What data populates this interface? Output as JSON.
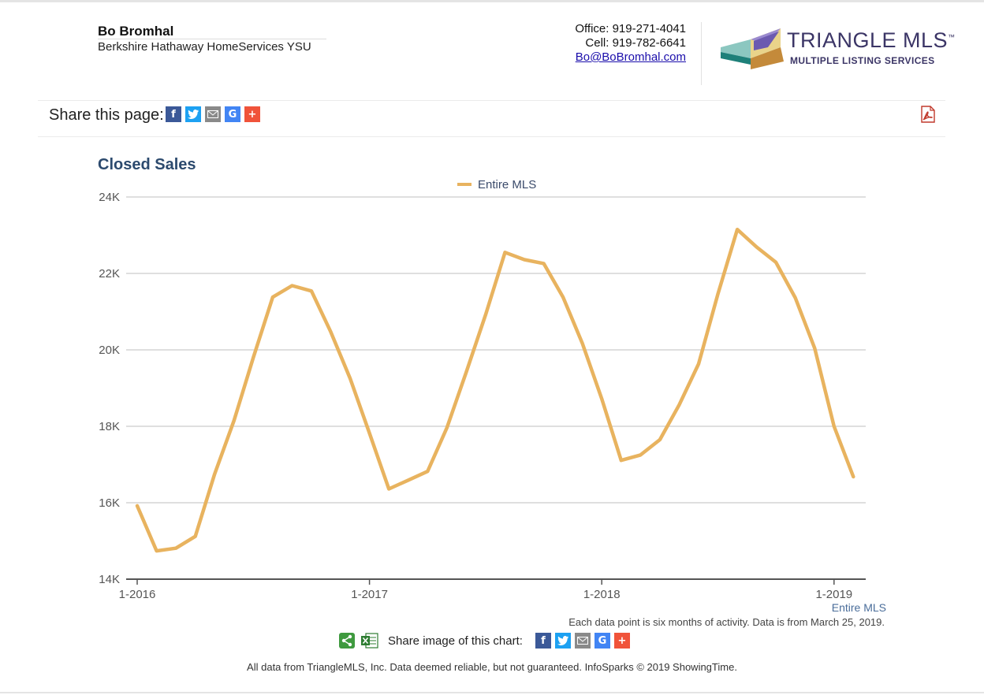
{
  "agent": {
    "name": "Bo Bromhal",
    "company": "Berkshire Hathaway HomeServices YSU"
  },
  "contact": {
    "office": "Office: 919-271-4041",
    "cell": "Cell: 919-782-6641",
    "email": "Bo@BoBromhal.com"
  },
  "logo": {
    "title": "TRIANGLE MLS",
    "tm": "™",
    "subtitle": "MULTIPLE LISTING SERVICES"
  },
  "share": {
    "label": "Share this page:",
    "chart_label": "Share image of this chart:",
    "icons": [
      "facebook-icon",
      "twitter-icon",
      "email-icon",
      "google-icon",
      "plus-icon"
    ]
  },
  "chart_note": "Each data point is six months of activity. Data is from March 25, 2019.",
  "series_label": "Entire MLS",
  "footer": "All data from TriangleMLS, Inc. Data deemed reliable, but not guaranteed. InfoSparks © 2019 ShowingTime.",
  "colors": {
    "series": "#e8b35f",
    "title": "#2c4a6e",
    "grid": "#cccccc"
  },
  "chart_data": {
    "type": "line",
    "title": "Closed Sales",
    "legend": [
      "Entire MLS"
    ],
    "legend_position": "top-center",
    "grid": true,
    "ylim": [
      14000,
      24000
    ],
    "yticks": [
      14000,
      16000,
      18000,
      20000,
      22000,
      24000
    ],
    "ytick_labels": [
      "14K",
      "16K",
      "18K",
      "20K",
      "22K",
      "24K"
    ],
    "xticks": [
      "1-2016",
      "1-2017",
      "1-2018",
      "1-2019"
    ],
    "x": [
      "1-2016",
      "2-2016",
      "3-2016",
      "4-2016",
      "5-2016",
      "6-2016",
      "7-2016",
      "8-2016",
      "9-2016",
      "10-2016",
      "11-2016",
      "12-2016",
      "1-2017",
      "2-2017",
      "3-2017",
      "4-2017",
      "5-2017",
      "6-2017",
      "7-2017",
      "8-2017",
      "9-2017",
      "10-2017",
      "11-2017",
      "12-2017",
      "1-2018",
      "2-2018",
      "3-2018",
      "4-2018",
      "5-2018",
      "6-2018",
      "7-2018",
      "8-2018",
      "9-2018",
      "10-2018",
      "11-2018",
      "12-2018",
      "1-2019",
      "2-2019"
    ],
    "series": [
      {
        "name": "Entire MLS",
        "values": [
          15920,
          14740,
          14810,
          15120,
          16750,
          18150,
          19800,
          21380,
          21680,
          21540,
          20470,
          19250,
          17820,
          16360,
          16590,
          16820,
          17960,
          19420,
          20920,
          22550,
          22360,
          22260,
          21380,
          20170,
          18720,
          17110,
          17250,
          17650,
          18560,
          19630,
          21460,
          23150,
          22690,
          22290,
          21360,
          20040,
          18000,
          16680
        ]
      }
    ]
  }
}
